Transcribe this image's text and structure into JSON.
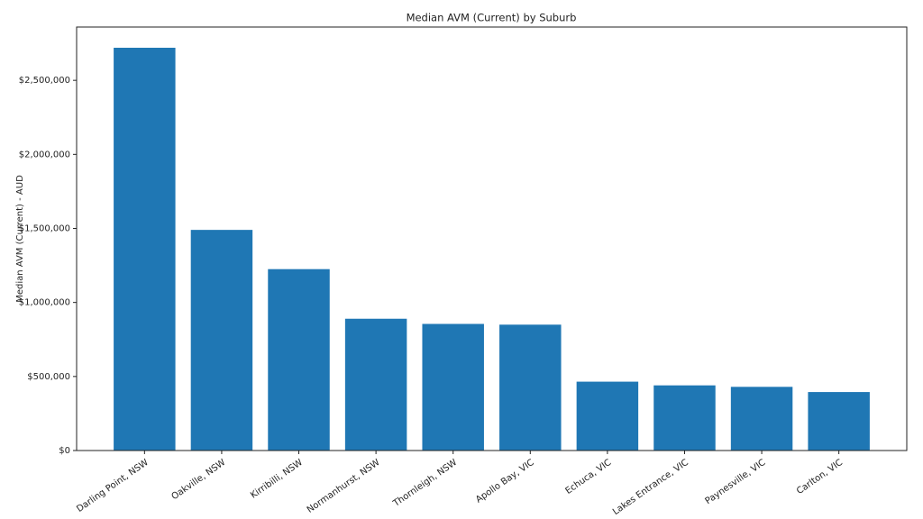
{
  "chart_data": {
    "type": "bar",
    "title": "Median AVM (Current) by Suburb",
    "y_label": "Median AVM (Current) - AUD",
    "categories": [
      "Darling Point, NSW",
      "Oakville, NSW",
      "Kirribilli, NSW",
      "Normanhurst, NSW",
      "Thornleigh, NSW",
      "Apollo Bay, VIC",
      "Echuca, VIC",
      "Lakes Entrance, VIC",
      "Paynesville, VIC",
      "Carlton, VIC"
    ],
    "values": [
      2720000,
      1490000,
      1225000,
      890000,
      855000,
      850000,
      465000,
      440000,
      430000,
      395000
    ],
    "color": "#1f77b4",
    "ylim": [
      0,
      2860000
    ],
    "yticks": [
      {
        "value": 0,
        "label": "$0"
      },
      {
        "value": 500000,
        "label": "$500,000"
      },
      {
        "value": 1000000,
        "label": "$1,000,000"
      },
      {
        "value": 1500000,
        "label": "$1,500,000"
      },
      {
        "value": 2000000,
        "label": "$2,000,000"
      },
      {
        "value": 2500000,
        "label": "$2,500,000"
      }
    ],
    "grid": false
  }
}
